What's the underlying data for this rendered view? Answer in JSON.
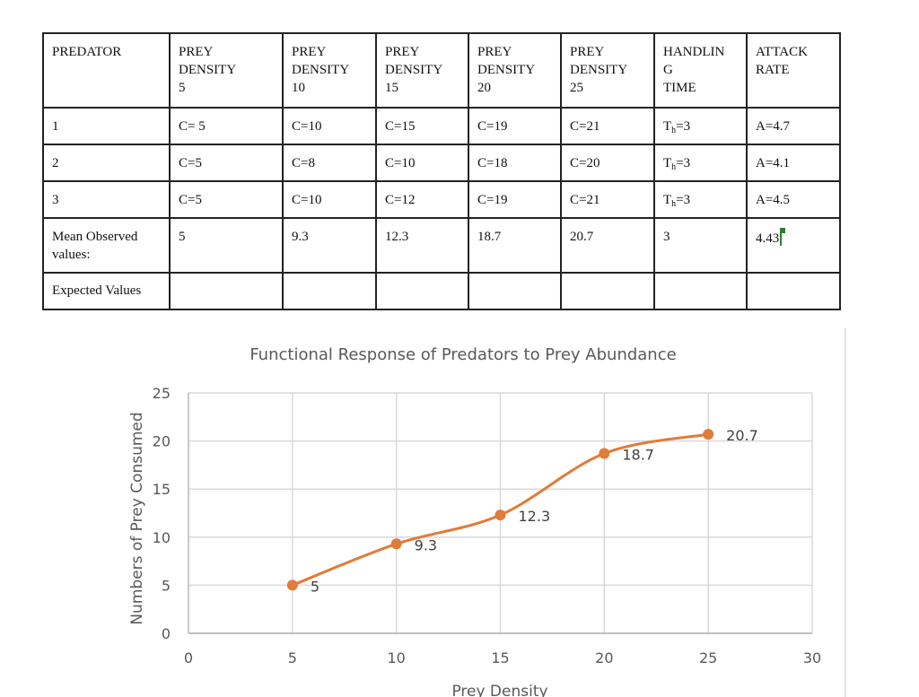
{
  "table": {
    "headers": [
      [
        "PREDATOR"
      ],
      [
        "PREY",
        "DENSITY",
        "5"
      ],
      [
        "PREY",
        "DENSITY",
        "10"
      ],
      [
        "PREY",
        "DENSITY",
        "15"
      ],
      [
        "PREY",
        "DENSITY",
        "20"
      ],
      [
        "PREY",
        "DENSITY",
        "25"
      ],
      [
        "HANDLIN",
        "G",
        "TIME"
      ],
      [
        "ATTACK",
        "RATE"
      ]
    ],
    "rows": [
      {
        "predator": "1",
        "c": [
          "C= 5",
          "C=10",
          "C=15",
          "C=19",
          "C=21"
        ],
        "th_prefix": "T",
        "th_sub": "h",
        "th_value": "=3",
        "attack": "A=4.7"
      },
      {
        "predator": "2",
        "c": [
          "C=5",
          "C=8",
          "C=10",
          "C=18",
          "C=20"
        ],
        "th_prefix": "T",
        "th_sub": "h",
        "th_value": "=3",
        "attack": "A=4.1"
      },
      {
        "predator": "3",
        "c": [
          "C=5",
          "C=10",
          "C=12",
          "C=19",
          "C=21"
        ],
        "th_prefix": "T",
        "th_sub": "h",
        "th_value": "=3",
        "attack": "A=4.5"
      }
    ],
    "mean_row": {
      "label": "Mean Observed values:",
      "values": [
        "5",
        "9.3",
        "12.3",
        "18.7",
        "20.7",
        "3",
        "4.43"
      ]
    },
    "expected_row": {
      "label": "Expected Values",
      "values": [
        "",
        "",
        "",
        "",
        "",
        "",
        ""
      ]
    }
  },
  "chart_data": {
    "type": "line",
    "title": "Functional Response of Predators to Prey Abundance",
    "xlabel": "Prey Density",
    "ylabel": "Numbers of Prey Consumed",
    "x": [
      5,
      10,
      15,
      20,
      25
    ],
    "series": [
      {
        "name": "Mean Observed values",
        "values": [
          5,
          9.3,
          12.3,
          18.7,
          20.7
        ],
        "color": "#e07b39",
        "smooth": true,
        "markers": true
      }
    ],
    "data_labels": [
      "5",
      "9.3",
      "12.3",
      "18.7",
      "20.7"
    ],
    "xlim": [
      0,
      30
    ],
    "ylim": [
      0,
      25
    ],
    "xticks": [
      0,
      5,
      10,
      15,
      20,
      25,
      30
    ],
    "yticks": [
      0,
      5,
      10,
      15,
      20,
      25
    ],
    "grid": true,
    "legend": "none",
    "colors": {
      "grid": "#d9d9d9",
      "axis": "#bfbfbf",
      "text": "#595959"
    }
  }
}
